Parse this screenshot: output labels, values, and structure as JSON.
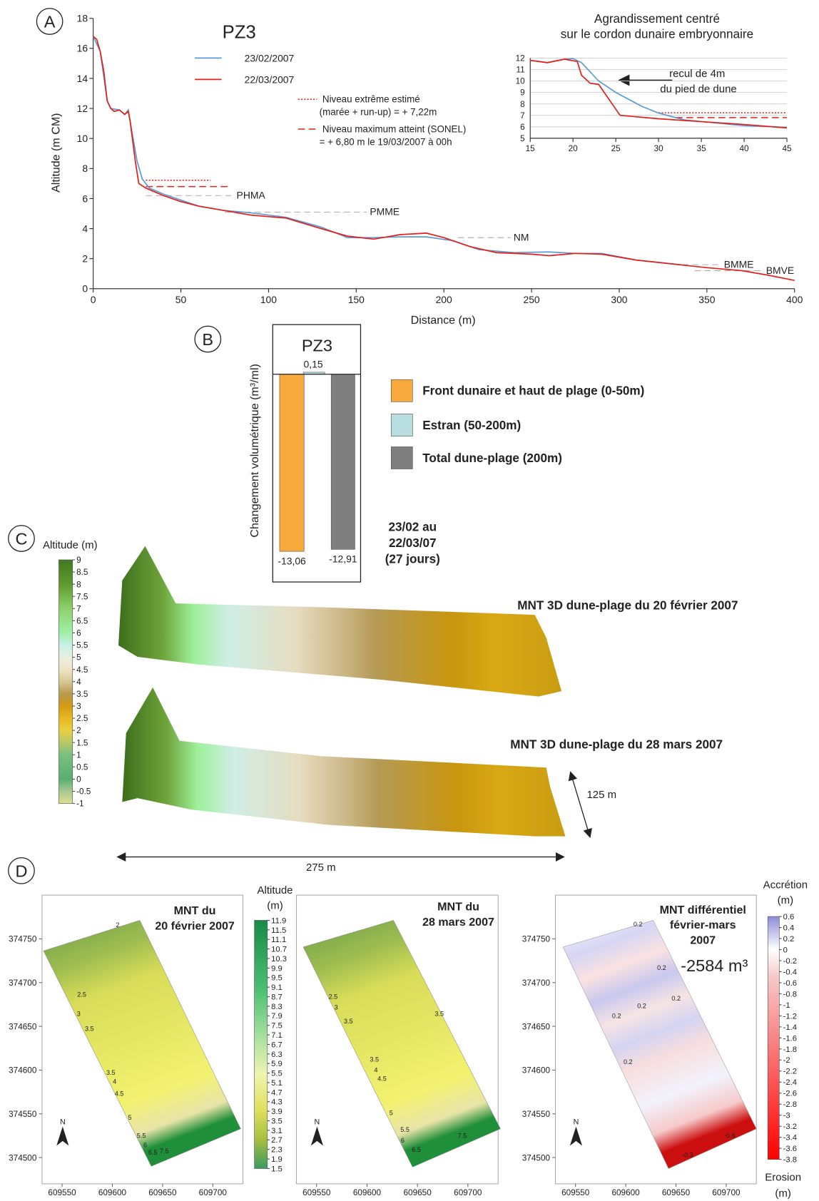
{
  "panel_labels": [
    "A",
    "B",
    "C",
    "D"
  ],
  "chart_data": [
    {
      "type": "line",
      "title": "PZ3",
      "xlabel": "Distance (m)",
      "ylabel": "Altitude (m CM)",
      "xlim": [
        0,
        400
      ],
      "xticks": [
        0,
        50,
        100,
        150,
        200,
        250,
        300,
        350,
        400
      ],
      "ylim": [
        0,
        18
      ],
      "yticks": [
        0,
        2,
        4,
        6,
        8,
        10,
        12,
        14,
        16,
        18
      ],
      "grid": false,
      "series": [
        {
          "name": "23/02/2007",
          "color": "#5b9bd5",
          "x": [
            0,
            4,
            8,
            10,
            15,
            18,
            20,
            22,
            25,
            28,
            32,
            40,
            50,
            60,
            75,
            90,
            110,
            130,
            145,
            160,
            175,
            190,
            205,
            220,
            240,
            260,
            275,
            290,
            310,
            335
          ],
          "values": [
            16.8,
            15.8,
            12.5,
            12,
            11.9,
            11.6,
            11.9,
            10.5,
            8.5,
            7.3,
            6.7,
            6.3,
            5.9,
            5.5,
            5.2,
            5.05,
            4.75,
            4.1,
            3.4,
            3.4,
            3.45,
            3.45,
            3.2,
            2.6,
            2.4,
            2.45,
            2.35,
            2.35,
            1.9,
            1.6
          ]
        },
        {
          "name": "22/03/2007",
          "color": "#e3201b",
          "x": [
            0,
            2,
            4,
            6,
            8,
            10,
            12,
            15,
            18,
            20,
            21,
            24,
            26,
            30,
            40,
            50,
            60,
            75,
            90,
            110,
            130,
            145,
            160,
            175,
            190,
            200,
            215,
            230,
            250,
            260,
            275,
            290,
            310,
            330,
            350,
            370,
            385,
            400
          ],
          "values": [
            16.8,
            16.6,
            15.8,
            14.5,
            12.5,
            12,
            11.8,
            11.9,
            11.6,
            11.8,
            11.2,
            8.5,
            7,
            6.7,
            6.2,
            5.8,
            5.5,
            5.2,
            4.9,
            4.7,
            4.0,
            3.5,
            3.3,
            3.6,
            3.7,
            3.4,
            2.8,
            2.4,
            2.3,
            2.2,
            2.35,
            2.3,
            1.9,
            1.65,
            1.4,
            1.2,
            0.9,
            0.55
          ]
        }
      ],
      "levels": [
        {
          "value": 7.22,
          "x": [
            30,
            67
          ],
          "style": "dotted",
          "color": "#e3201b",
          "label": [
            "Niveau extrême estimé",
            "(marée + run-up)  = + 7,22m"
          ]
        },
        {
          "value": 6.8,
          "x": [
            30,
            78
          ],
          "style": "dashed",
          "color": "#e3201b",
          "label": [
            "Niveau maximum atteint (SONEL)",
            "= + 6,80 m le 19/03/2007 à 00h"
          ]
        }
      ],
      "reference_lines": [
        {
          "label": "PHMA",
          "value": 6.2,
          "x": [
            30,
            80
          ]
        },
        {
          "label": "PMME",
          "value": 5.1,
          "x": [
            75,
            156
          ]
        },
        {
          "label": "NM",
          "value": 3.4,
          "x": [
            208,
            238
          ]
        },
        {
          "label": "BMME",
          "value": 1.6,
          "x": [
            336,
            358
          ]
        },
        {
          "label": "BMVE",
          "value": 1.2,
          "x": [
            343,
            382
          ]
        }
      ]
    },
    {
      "type": "line",
      "title": [
        "Agrandissement centré",
        "sur le cordon dunaire embryonnaire"
      ],
      "xlim": [
        15,
        45
      ],
      "xticks": [
        15,
        20,
        25,
        30,
        35,
        40,
        45
      ],
      "ylim": [
        5,
        12
      ],
      "yticks": [
        5,
        6,
        7,
        8,
        9,
        10,
        11,
        12
      ],
      "grid": true,
      "series": [
        {
          "color": "#5b9bd5",
          "x": [
            15,
            17,
            19,
            20,
            21,
            23,
            25,
            28,
            30,
            33,
            40,
            45
          ],
          "values": [
            11.8,
            11.6,
            11.9,
            11.95,
            11.6,
            10,
            9,
            7.8,
            7.2,
            6.6,
            6.1,
            5.95
          ]
        },
        {
          "color": "#e3201b",
          "x": [
            15,
            17,
            19,
            20.5,
            21,
            22,
            23,
            25.5,
            30,
            35,
            40,
            45
          ],
          "values": [
            11.8,
            11.6,
            11.9,
            11.7,
            10.5,
            9.8,
            9.7,
            7,
            6.7,
            6.45,
            6.2,
            5.9
          ]
        }
      ],
      "levels": [
        {
          "value": 7.22,
          "x": [
            30,
            45
          ],
          "style": "dotted",
          "color": "#e3201b"
        },
        {
          "value": 6.8,
          "x": [
            32,
            45
          ],
          "style": "dashed",
          "color": "#e3201b"
        }
      ],
      "annotation": [
        "recul de 4m",
        "du pied de dune"
      ]
    },
    {
      "type": "bar",
      "title": "PZ3",
      "ylabel": "Changement volumétrique (m³/ml)",
      "categories": [
        "Front dunaire et haut de plage (0-50m)",
        "Estran (50-200m)",
        "Total dune-plage (200m)"
      ],
      "values": [
        -13.06,
        0.15,
        -12.91
      ],
      "value_labels": [
        "-13,06",
        "0,15",
        "-12,91"
      ],
      "colors": [
        "#f7a93b",
        "#b7dde0",
        "#7f7f7f"
      ],
      "ylim": [
        -13.5,
        0.6
      ],
      "note": [
        "23/02 au",
        "22/03/07",
        "(27 jours)"
      ]
    }
  ],
  "panel_c": {
    "colorbar": {
      "title": "Altitude (m)",
      "lim": [
        -1,
        9
      ],
      "ticks": [
        9,
        8.5,
        8,
        7.5,
        7,
        6.5,
        6,
        5.5,
        5,
        4.5,
        4,
        3.5,
        3,
        2.5,
        2,
        1.5,
        1,
        0.5,
        0,
        -0.5,
        -1
      ]
    },
    "labels": [
      "MNT 3D dune-plage du 20 février 2007",
      "MNT 3D dune-plage du 28 mars 2007"
    ],
    "width_label": "125 m",
    "length_label": "275 m"
  },
  "panel_d": {
    "maps": [
      {
        "title": [
          "MNT du",
          "20 février 2007"
        ],
        "xlim": [
          609530,
          609730
        ],
        "xticks": [
          609550,
          609600,
          609650,
          609700
        ],
        "ylim": [
          374470,
          374800
        ],
        "yticks": [
          374500,
          374550,
          374600,
          374650,
          374700,
          374750
        ],
        "north": "N",
        "contour_labels": [
          "2",
          "2.5",
          "3",
          "3.5",
          "3.5",
          "4",
          "4.5",
          "5",
          "5.5",
          "6",
          "6.5",
          "7.5"
        ]
      },
      {
        "title": [
          "MNT du",
          "28 mars 2007"
        ],
        "xlim": [
          609530,
          609730
        ],
        "xticks": [
          609550,
          609600,
          609650,
          609700
        ],
        "north": "N",
        "contour_labels": [
          "2.5",
          "3",
          "3.5",
          "3.5",
          "3.5",
          "4",
          "4.5",
          "5",
          "5.5",
          "6",
          "6.5",
          "7.5"
        ]
      },
      {
        "title": [
          "MNT différentiel",
          "février-mars",
          "2007"
        ],
        "volume": "-2584 m³",
        "xlim": [
          609530,
          609730
        ],
        "xticks": [
          609550,
          609600,
          609650,
          609700
        ],
        "ylim": [
          374470,
          374800
        ],
        "yticks": [
          374500,
          374550,
          374600,
          374650,
          374700,
          374750
        ],
        "north": "N",
        "contour_labels": [
          "0.2",
          "0.2",
          "0.2",
          "0.2",
          "0.2",
          "0.2",
          "-0.3",
          "-0.8"
        ]
      }
    ],
    "colorbars": [
      {
        "title": [
          "Altitude",
          "(m)"
        ],
        "lim": [
          1.5,
          11.9
        ],
        "ticks": [
          11.9,
          11.5,
          11.1,
          10.7,
          10.3,
          9.9,
          9.5,
          9.1,
          8.7,
          8.3,
          7.9,
          7.5,
          7.1,
          6.7,
          6.3,
          5.9,
          5.5,
          5.1,
          4.7,
          4.3,
          3.9,
          3.5,
          3.1,
          2.7,
          2.3,
          1.9,
          1.5
        ]
      },
      {
        "title": [
          "Accrétion",
          "(m)"
        ],
        "bottom_title": [
          "Erosion",
          "(m)"
        ],
        "lim": [
          -3.8,
          0.6
        ],
        "ticks": [
          0.6,
          0.4,
          0.2,
          0,
          -0.2,
          -0.4,
          -0.6,
          -0.8,
          -1,
          -1.2,
          -1.4,
          -1.6,
          -1.8,
          -2,
          -2.2,
          -2.4,
          -2.6,
          -2.8,
          -3,
          -3.2,
          -3.4,
          -3.6,
          -3.8
        ]
      }
    ]
  }
}
